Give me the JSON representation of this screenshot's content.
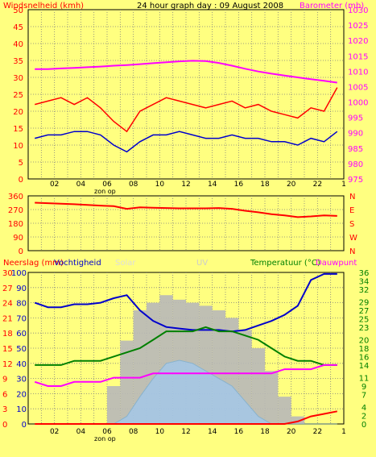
{
  "header": {
    "left_label": "Windsnelheid (kmh)",
    "title": "24 hour graph day : 09 August 2008",
    "right_label": "Barometer (mb)"
  },
  "x_ticks": [
    "02",
    "04",
    "06",
    "08",
    "10",
    "12",
    "14",
    "16",
    "18",
    "20",
    "22",
    "1"
  ],
  "zon_op_label": "zon op",
  "bottom_header": {
    "rain_label": "Neerslag (mm)",
    "humidity_label": "Vochtigheid",
    "solar_label": "Solar",
    "uv_label": "UV",
    "temp_label": "Temperatuur (°C)",
    "dew_label": "Dauwpunt"
  },
  "colors": {
    "background": "#ffff80",
    "wind_gust": "#ff0000",
    "wind_avg": "#0000cc",
    "barometer": "#ff00ff",
    "direction": "#ff0000",
    "humidity": "#0000cc",
    "temperature": "#008000",
    "dewpoint": "#ff00ff",
    "solar": "#b8b8b8",
    "uv": "#99ccff",
    "rain": "#ff0000",
    "left_axis_text": "#ff0000",
    "right_axis_text": "#ff00ff",
    "bottom_right_axis_text": "#008000"
  },
  "chart_data": [
    {
      "type": "line",
      "title": "24 hour graph day : 09 August 2008",
      "x": [
        "01",
        "02",
        "03",
        "04",
        "05",
        "06",
        "07",
        "08",
        "09",
        "10",
        "11",
        "12",
        "13",
        "14",
        "15",
        "16",
        "17",
        "18",
        "19",
        "20",
        "21",
        "22",
        "23",
        "1"
      ],
      "yaxis_left": {
        "label": "Windsnelheid (kmh)",
        "range": [
          0,
          50
        ],
        "ticks": [
          "0",
          "5",
          "10",
          "15",
          "20",
          "25",
          "30",
          "35",
          "40",
          "45",
          "50"
        ]
      },
      "yaxis_right": {
        "label": "Barometer (mb)",
        "range": [
          975,
          1030
        ],
        "ticks": [
          "975",
          "980",
          "985",
          "990",
          "995",
          "1000",
          "1005",
          "1010",
          "1015",
          "1020",
          "1025",
          "1030"
        ]
      },
      "series": [
        {
          "name": "Windsnelheid",
          "values": [
            22,
            23,
            24,
            22,
            24,
            21,
            17,
            14,
            20,
            22,
            24,
            23,
            22,
            21,
            22,
            23,
            21,
            22,
            20,
            19,
            18,
            21,
            20,
            27
          ]
        },
        {
          "name": "Windsnelheid",
          "values": [
            12,
            13,
            13,
            14,
            14,
            13,
            10,
            8,
            11,
            13,
            13,
            14,
            13,
            12,
            12,
            13,
            12,
            12,
            11,
            11,
            10,
            12,
            11,
            14
          ]
        },
        {
          "name": "Barometer",
          "values": [
            1010.7,
            1010.7,
            1010.9,
            1011.1,
            1011.3,
            1011.5,
            1011.8,
            1012.0,
            1012.3,
            1012.6,
            1012.9,
            1013.2,
            1013.4,
            1013.3,
            1012.7,
            1011.8,
            1010.8,
            1009.9,
            1009.2,
            1008.6,
            1008.0,
            1007.4,
            1006.9,
            1006.3
          ]
        }
      ]
    },
    {
      "type": "line",
      "y_ticks": [
        "0",
        "90",
        "180",
        "270",
        "360"
      ],
      "y_range": [
        0,
        360
      ],
      "right_labels": [
        "N",
        "W",
        "S",
        "E",
        "N"
      ],
      "x": [
        "01",
        "02",
        "03",
        "04",
        "05",
        "06",
        "07",
        "08",
        "09",
        "10",
        "11",
        "12",
        "13",
        "14",
        "15",
        "16",
        "17",
        "18",
        "19",
        "20",
        "21",
        "22",
        "23",
        "1"
      ],
      "series": [
        {
          "name": "Windrichting",
          "values": [
            315,
            312,
            308,
            305,
            300,
            296,
            292,
            275,
            285,
            282,
            280,
            278,
            278,
            278,
            280,
            275,
            262,
            252,
            240,
            232,
            220,
            225,
            232,
            228
          ]
        }
      ]
    },
    {
      "type": "area",
      "x": [
        "01",
        "02",
        "03",
        "04",
        "05",
        "06",
        "07",
        "08",
        "09",
        "10",
        "11",
        "12",
        "13",
        "14",
        "15",
        "16",
        "17",
        "18",
        "19",
        "20",
        "21",
        "22",
        "23",
        "1"
      ],
      "yaxis_left_rain": {
        "label": "Neerslag (mm)",
        "range": [
          0,
          30
        ],
        "ticks": [
          "0",
          "3",
          "6",
          "9",
          "12",
          "15",
          "18",
          "21",
          "24",
          "27",
          "30"
        ]
      },
      "yaxis_left_humidity": {
        "label": "Vochtigheid",
        "range": [
          0,
          100
        ],
        "ticks": [
          "0",
          "10",
          "20",
          "30",
          "40",
          "50",
          "60",
          "70",
          "80",
          "90",
          "100"
        ]
      },
      "yaxis_right_temp": {
        "label": "Temperatuur (°C)",
        "range": [
          0,
          36
        ],
        "ticks": [
          "0",
          "2",
          "4",
          "7",
          "9",
          "11",
          "14",
          "16",
          "18",
          "20",
          "23",
          "25",
          "27",
          "29",
          "32",
          "34",
          "36"
        ]
      },
      "yaxis_right_dew": {
        "label": "Dauwpunt",
        "range": [
          0,
          36
        ],
        "ticks": [
          "0",
          "2",
          "4",
          "7",
          "9",
          "11",
          "14",
          "16",
          "18",
          "20",
          "23",
          "25",
          "27",
          "29",
          "32",
          "34",
          "36"
        ]
      },
      "series": [
        {
          "name": "Vochtigheid",
          "values": [
            80,
            77,
            77,
            79,
            79,
            80,
            83,
            85,
            75,
            68,
            64,
            63,
            62,
            62,
            62,
            61,
            62,
            65,
            68,
            72,
            78,
            95,
            99,
            99
          ]
        },
        {
          "name": "Temperatuur",
          "values": [
            14,
            14,
            14,
            15,
            15,
            15,
            16,
            17,
            18,
            20,
            22,
            22,
            22,
            23,
            22,
            22,
            21,
            20,
            18,
            16,
            15,
            15,
            14,
            14
          ]
        },
        {
          "name": "Dauwpunt",
          "values": [
            10,
            9,
            9,
            10,
            10,
            10,
            11,
            11,
            11,
            12,
            12,
            12,
            12,
            12,
            12,
            12,
            12,
            12,
            12,
            13,
            13,
            13,
            14,
            14
          ]
        },
        {
          "name": "Solar",
          "values": [
            0,
            0,
            0,
            0,
            0,
            0,
            25,
            55,
            75,
            80,
            85,
            82,
            80,
            78,
            75,
            70,
            62,
            50,
            35,
            18,
            5,
            0,
            0,
            0
          ]
        },
        {
          "name": "UV",
          "values": [
            0,
            0,
            0,
            0,
            0,
            0,
            0,
            5,
            18,
            30,
            40,
            42,
            40,
            35,
            30,
            25,
            15,
            5,
            0,
            0,
            0,
            0,
            0,
            0
          ]
        },
        {
          "name": "Neerslag",
          "values": [
            0,
            0,
            0,
            0,
            0,
            0,
            0,
            0,
            0,
            0,
            0,
            0,
            0,
            0,
            0,
            0,
            0,
            0,
            0,
            0,
            0.5,
            1.5,
            2.0,
            2.5
          ]
        }
      ]
    }
  ]
}
